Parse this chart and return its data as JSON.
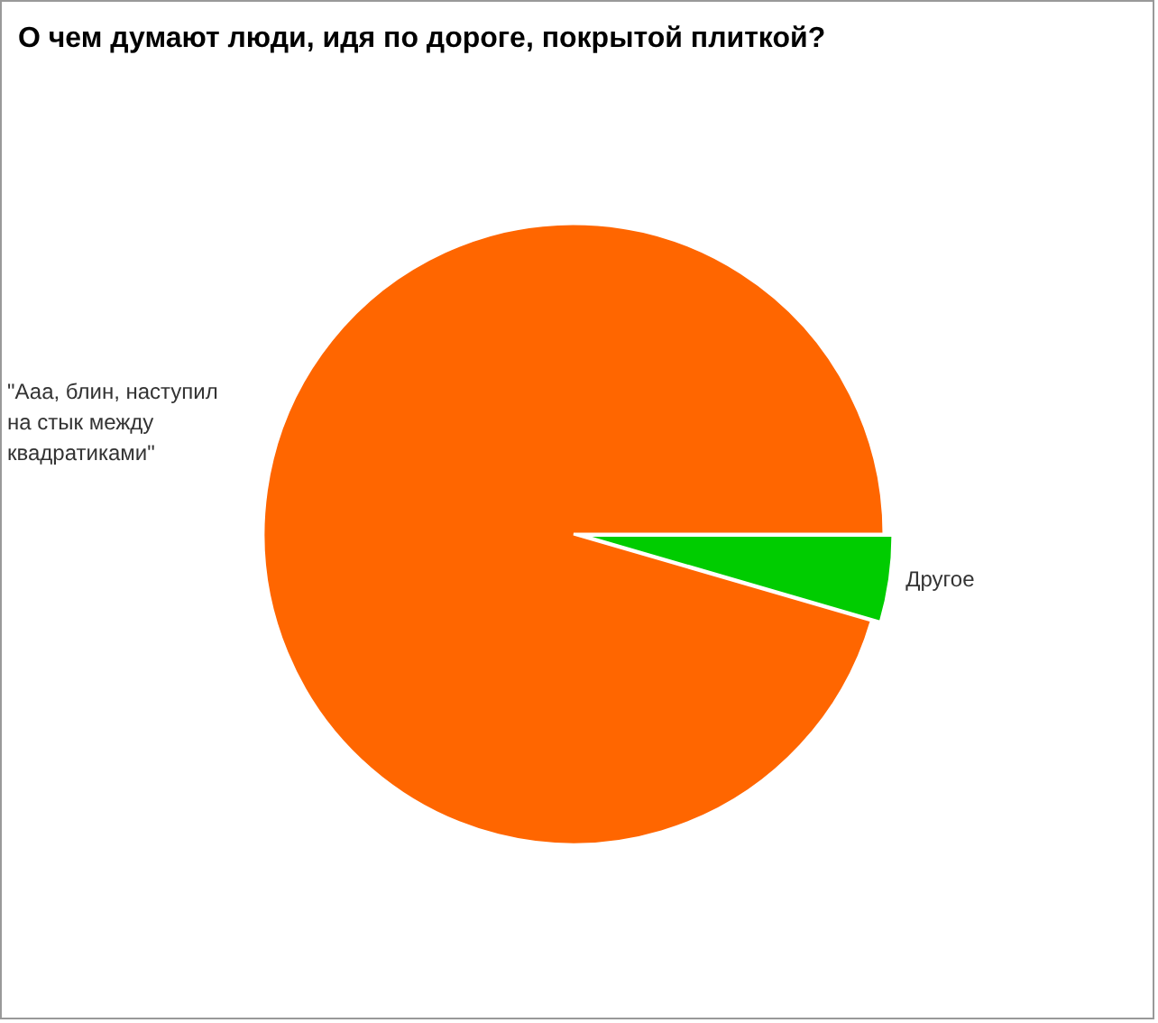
{
  "chart_data": {
    "type": "pie",
    "title": "О чем думают люди, идя по дороге, покрытой плиткой?",
    "categories": [
      "Другое",
      "\"Ааа, блин, наступил на стык между квадратиками\""
    ],
    "values": [
      4.5,
      95.5
    ],
    "colors": [
      "#00cc00",
      "#ff6600"
    ]
  }
}
